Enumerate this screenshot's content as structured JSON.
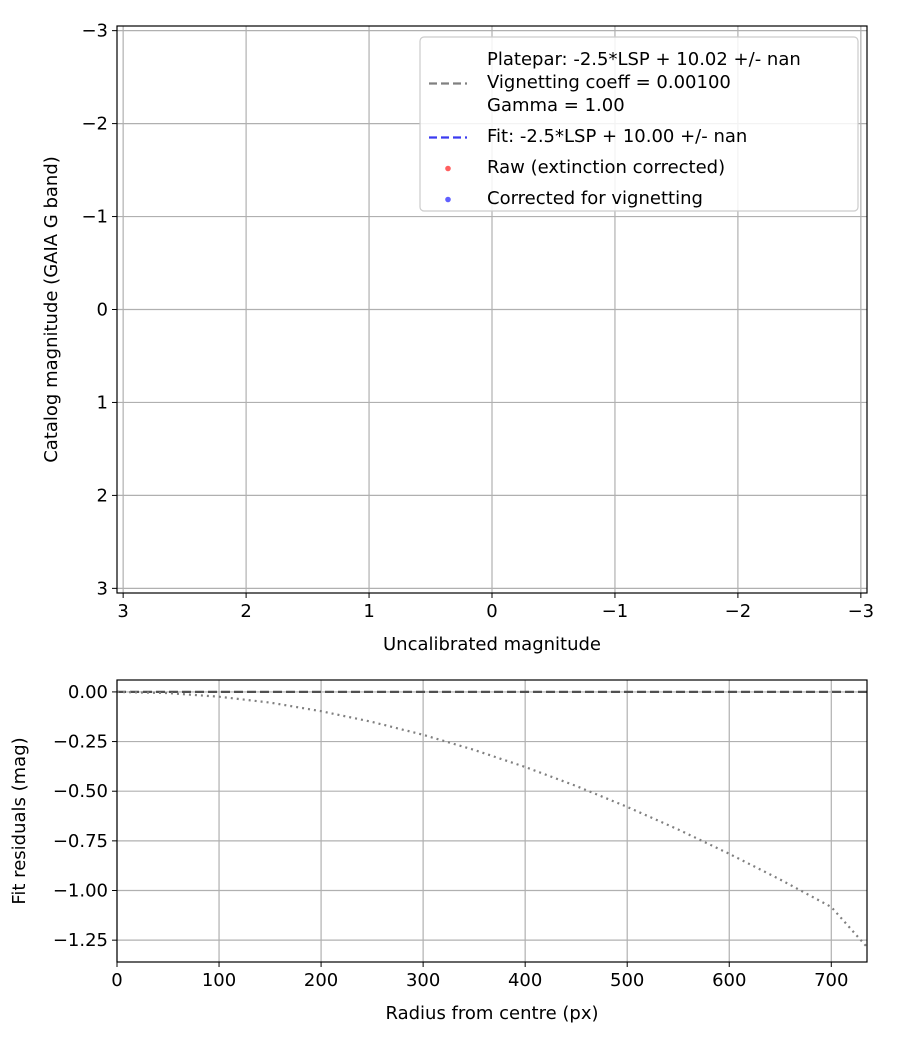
{
  "chart_data": [
    {
      "type": "line",
      "xlabel": "Uncalibrated magnitude",
      "ylabel": "Catalog magnitude (GAIA G band)",
      "xlim": [
        3.05,
        -3.05
      ],
      "ylim": [
        3.05,
        -3.05
      ],
      "xticks": [
        3,
        2,
        1,
        0,
        -1,
        -2,
        -3
      ],
      "yticks": [
        -3,
        -2,
        -1,
        0,
        1,
        2,
        3
      ],
      "xtick_labels": [
        "3",
        "2",
        "1",
        "0",
        "−1",
        "−2",
        "−3"
      ],
      "ytick_labels": [
        "−3",
        "−2",
        "−1",
        "0",
        "1",
        "2",
        "3"
      ],
      "grid": true,
      "legend_position": "top-right",
      "legend": [
        {
          "kind": "line",
          "color": "#808080",
          "dash": "dashed",
          "lines": [
            "Platepar: -2.5*LSP + 10.02 +/- nan",
            "Vignetting coeff = 0.00100",
            "Gamma = 1.00"
          ]
        },
        {
          "kind": "line",
          "color": "#3b3bf0",
          "dash": "dashed",
          "lines": [
            "Fit: -2.5*LSP + 10.00 +/- nan"
          ]
        },
        {
          "kind": "point",
          "color": "#ff5f5f",
          "lines": [
            "Raw (extinction corrected)"
          ]
        },
        {
          "kind": "point",
          "color": "#6060ff",
          "lines": [
            "Corrected for vignetting"
          ]
        }
      ],
      "series": []
    },
    {
      "type": "line",
      "xlabel": "Radius from centre (px)",
      "ylabel": "Fit residuals (mag)",
      "xlim": [
        0,
        735
      ],
      "ylim": [
        -1.36,
        0.06
      ],
      "xticks": [
        0,
        100,
        200,
        300,
        400,
        500,
        600,
        700
      ],
      "yticks": [
        0.0,
        -0.25,
        -0.5,
        -0.75,
        -1.0,
        -1.25
      ],
      "xtick_labels": [
        "0",
        "100",
        "200",
        "300",
        "400",
        "500",
        "600",
        "700"
      ],
      "ytick_labels": [
        "0.00",
        "−0.25",
        "−0.50",
        "−0.75",
        "−1.00",
        "−1.25"
      ],
      "grid": true,
      "series": [
        {
          "style": "dashed",
          "color": "#505050",
          "x": [
            0,
            735
          ],
          "y": [
            0,
            0
          ]
        },
        {
          "style": "dotted",
          "color": "#808080",
          "x": [
            0,
            50,
            100,
            150,
            200,
            250,
            300,
            350,
            400,
            450,
            500,
            550,
            600,
            650,
            700,
            735
          ],
          "y": [
            0,
            -0.006,
            -0.024,
            -0.054,
            -0.097,
            -0.151,
            -0.216,
            -0.292,
            -0.378,
            -0.474,
            -0.579,
            -0.693,
            -0.815,
            -0.945,
            -1.083,
            -1.285
          ]
        }
      ]
    }
  ]
}
